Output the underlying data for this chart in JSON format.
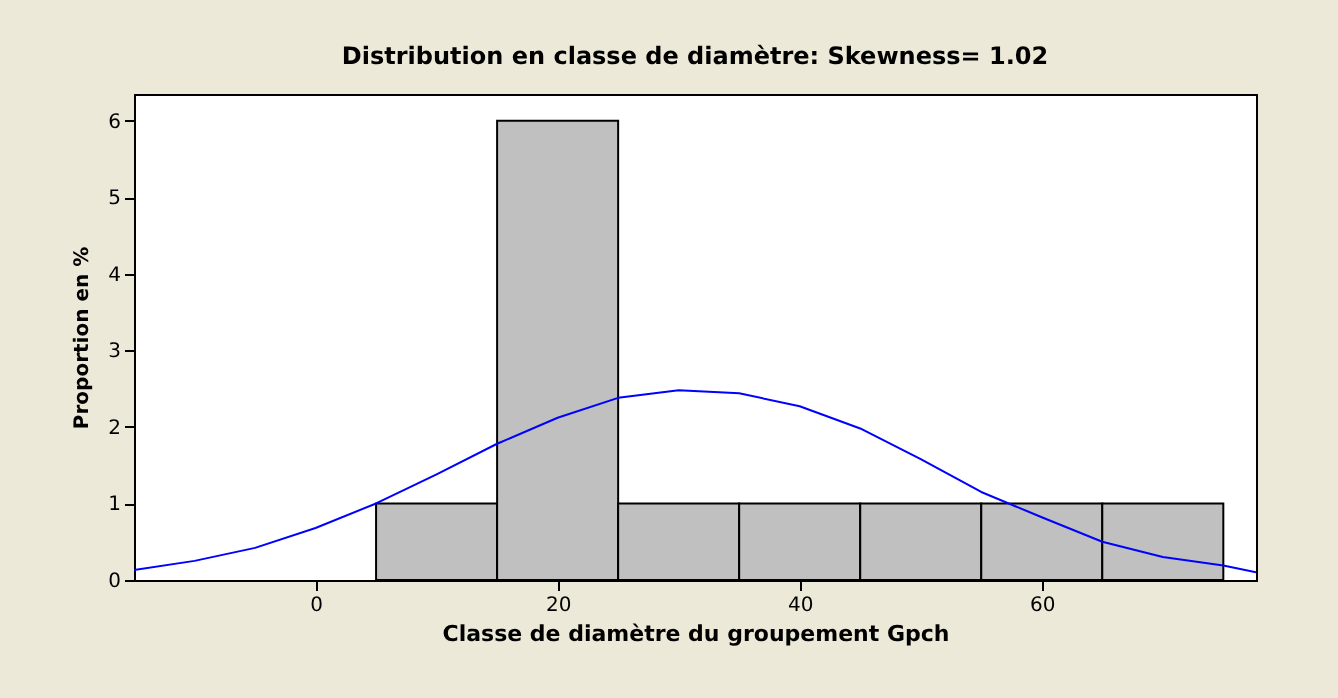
{
  "chart_data": {
    "type": "histogram",
    "title": "Distribution en classe de diamètre: Skewness= 1.02",
    "xlabel": "Classe de diamètre du groupement Gpch",
    "ylabel": "Proportion en %",
    "bins": [
      5,
      15,
      25,
      35,
      45,
      55,
      65,
      75
    ],
    "values": [
      1,
      6,
      1,
      1,
      1,
      1,
      1
    ],
    "color": "#c0c0c0",
    "series": [
      {
        "type": "line",
        "color": "#0000ff",
        "x": [
          -15,
          -10,
          -5,
          0,
          5,
          10,
          15,
          20,
          25,
          30,
          35,
          40,
          45,
          50,
          55,
          60,
          65,
          70,
          75,
          77.7
        ],
        "values": [
          0.13,
          0.25,
          0.42,
          0.68,
          1.0,
          1.38,
          1.78,
          2.12,
          2.38,
          2.48,
          2.44,
          2.27,
          1.98,
          1.58,
          1.15,
          0.82,
          0.5,
          0.3,
          0.19,
          0.1
        ]
      }
    ],
    "xlim": [
      -15,
      77.7
    ],
    "ylim": [
      0,
      6.35
    ],
    "xticks": [
      0,
      20,
      40,
      60
    ],
    "yticks": [
      0,
      1,
      2,
      3,
      4,
      5,
      6
    ],
    "grid": false
  }
}
